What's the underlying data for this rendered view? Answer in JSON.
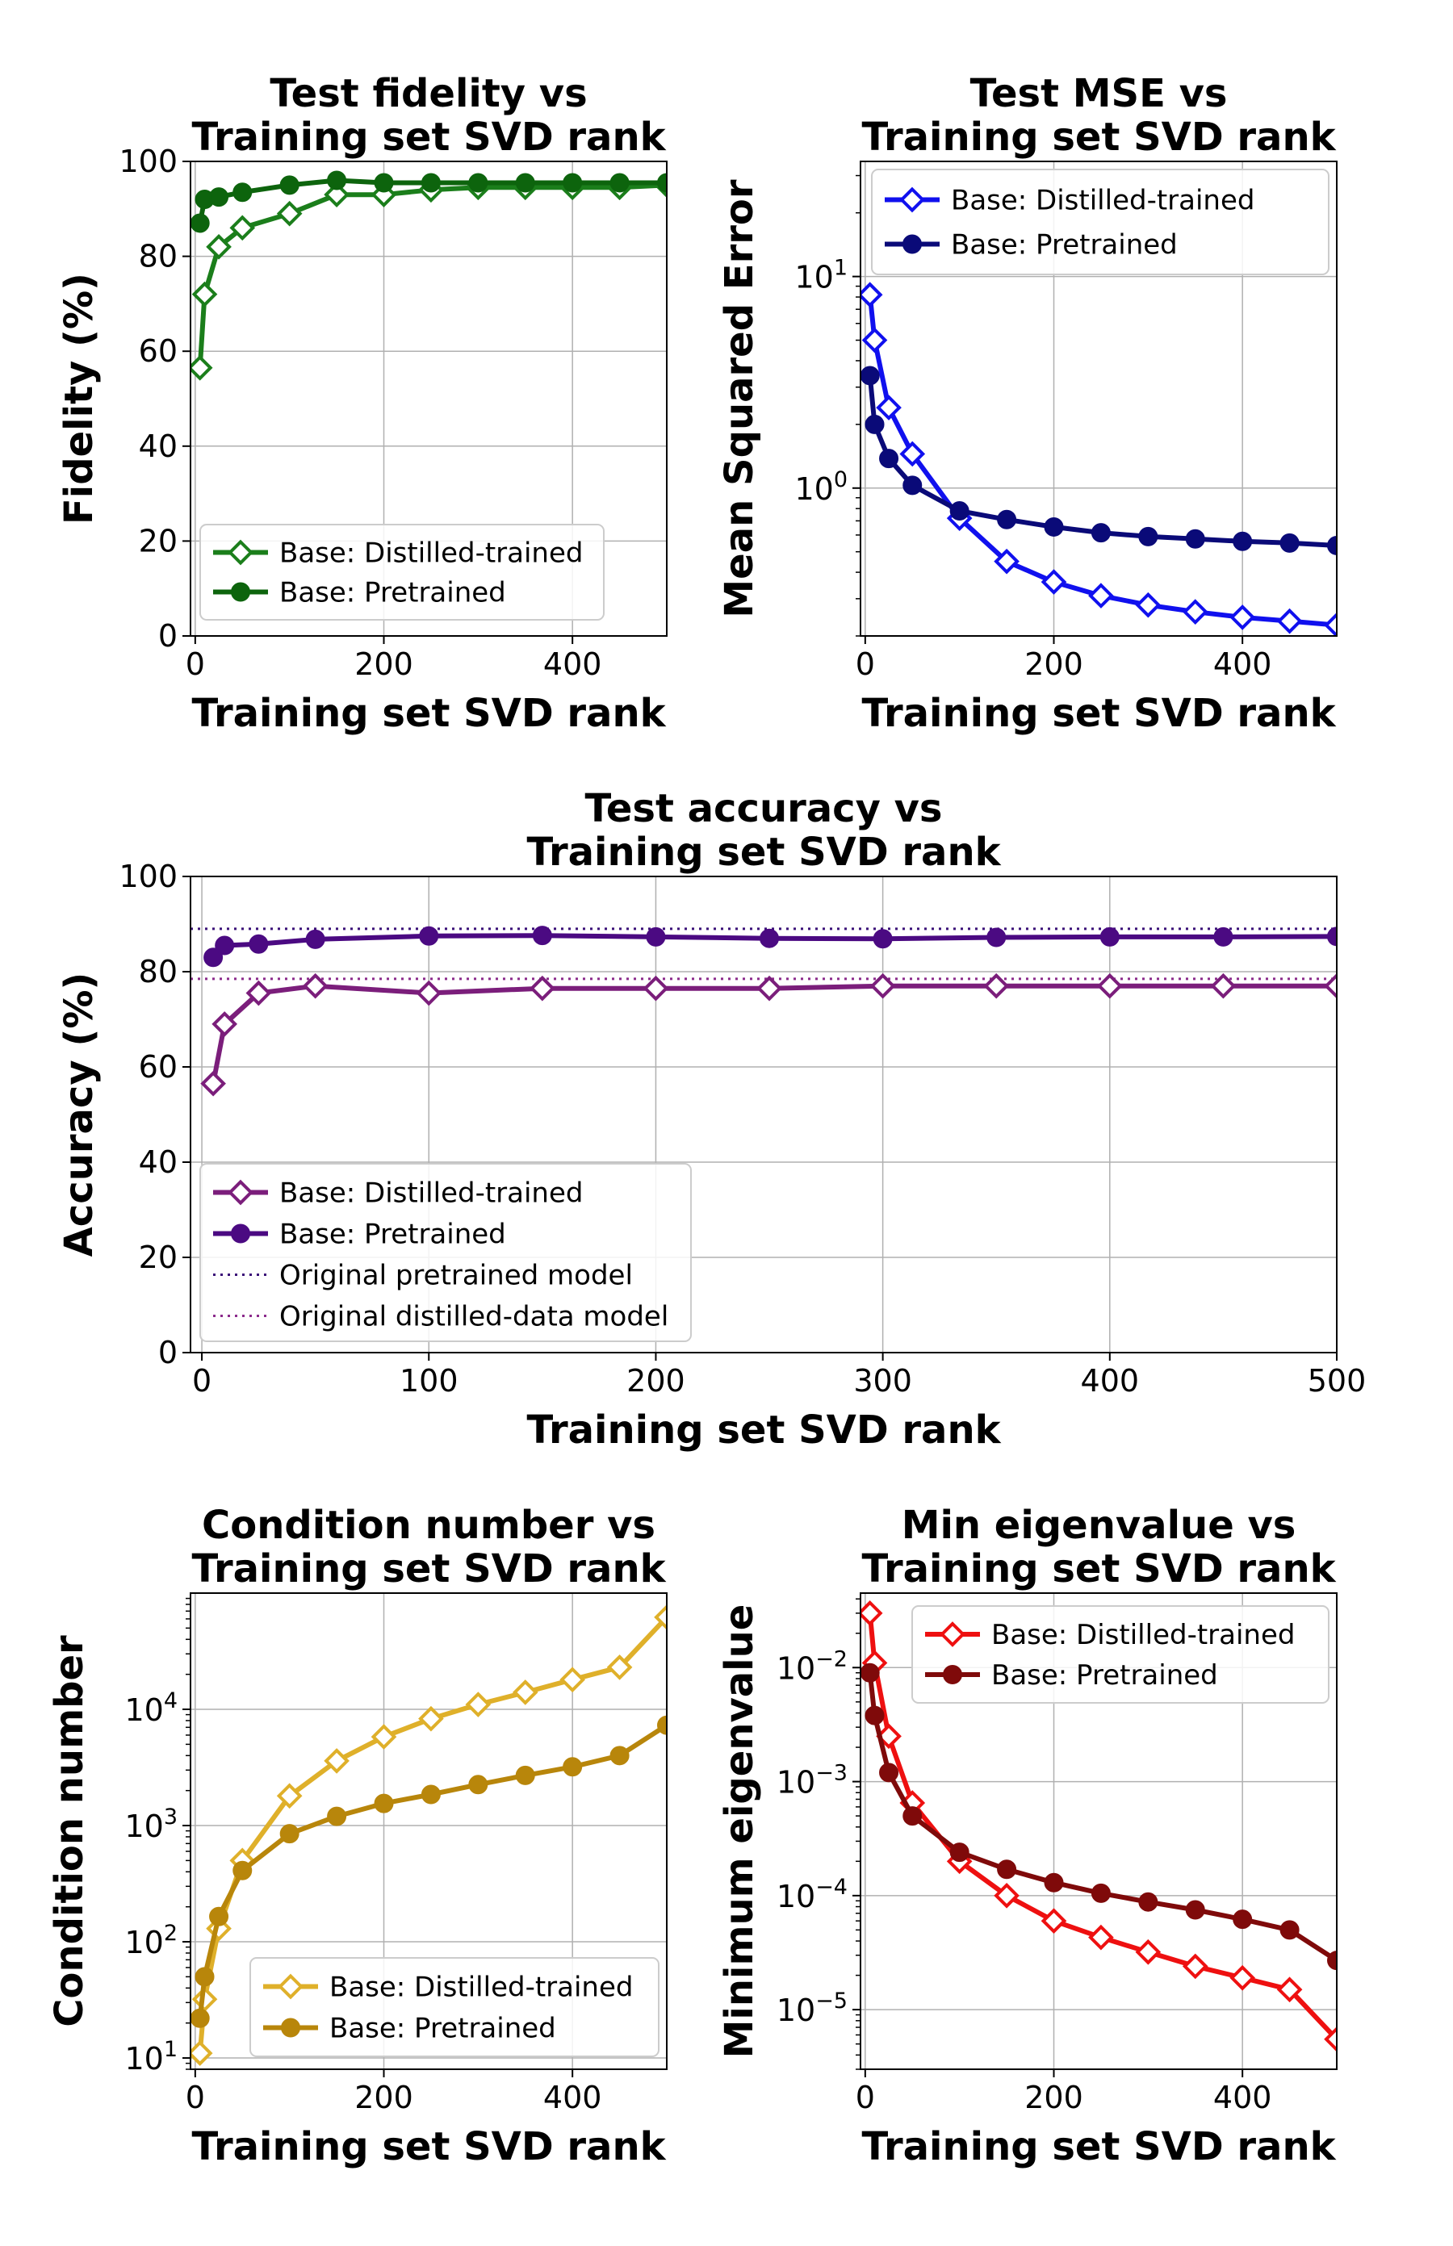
{
  "chart_data": [
    {
      "id": "fidelity",
      "type": "line",
      "title": [
        "Test fidelity vs",
        "Training set SVD rank"
      ],
      "xlabel": "Training set SVD rank",
      "ylabel": "Fidelity (%)",
      "xlim": [
        -5,
        500
      ],
      "ylim": [
        0,
        100
      ],
      "yscale": "linear",
      "xticks": [
        0,
        200,
        400
      ],
      "yticks": [
        0,
        20,
        40,
        60,
        80,
        100
      ],
      "grid": true,
      "legend_position": "lower-right",
      "series": [
        {
          "name": "Base: Distilled-trained",
          "color": "#1b7e1b",
          "marker": "diamond-open",
          "x": [
            5,
            10,
            25,
            50,
            100,
            150,
            200,
            250,
            300,
            350,
            400,
            450,
            500
          ],
          "y": [
            56.5,
            72,
            82,
            86,
            89,
            93,
            93,
            94,
            94.5,
            94.5,
            94.5,
            94.5,
            95
          ]
        },
        {
          "name": "Base: Pretrained",
          "color": "#0d640d",
          "marker": "circle",
          "x": [
            5,
            10,
            25,
            50,
            100,
            150,
            200,
            250,
            300,
            350,
            400,
            450,
            500
          ],
          "y": [
            87,
            92,
            92.5,
            93.5,
            95,
            96,
            95.5,
            95.5,
            95.5,
            95.5,
            95.5,
            95.5,
            95.5
          ]
        }
      ]
    },
    {
      "id": "mse",
      "type": "line",
      "title": [
        "Test MSE vs",
        "Training set SVD rank"
      ],
      "xlabel": "Training set SVD rank",
      "ylabel": "Mean Squared Error",
      "xlim": [
        -5,
        500
      ],
      "ylim": [
        0.2,
        35
      ],
      "yscale": "log",
      "xticks": [
        0,
        200,
        400
      ],
      "yticks": [
        {
          "base": "10",
          "exp": "0",
          "value": 1
        },
        {
          "base": "10",
          "exp": "1",
          "value": 10
        }
      ],
      "grid": true,
      "legend_position": "upper-right",
      "series": [
        {
          "name": "Base: Distilled-trained",
          "color": "#1010ee",
          "marker": "diamond-open",
          "x": [
            5,
            10,
            25,
            50,
            100,
            150,
            200,
            250,
            300,
            350,
            400,
            450,
            500
          ],
          "y": [
            8.2,
            5.0,
            2.4,
            1.45,
            0.72,
            0.45,
            0.36,
            0.31,
            0.28,
            0.26,
            0.245,
            0.235,
            0.225
          ]
        },
        {
          "name": "Base: Pretrained",
          "color": "#0a0a78",
          "marker": "circle",
          "x": [
            5,
            10,
            25,
            50,
            100,
            150,
            200,
            250,
            300,
            350,
            400,
            450,
            500
          ],
          "y": [
            3.4,
            2.0,
            1.38,
            1.03,
            0.78,
            0.71,
            0.655,
            0.615,
            0.59,
            0.575,
            0.56,
            0.55,
            0.535
          ]
        }
      ]
    },
    {
      "id": "accuracy",
      "type": "line",
      "title": [
        "Test accuracy vs",
        "Training set SVD rank"
      ],
      "xlabel": "Training set SVD rank",
      "ylabel": "Accuracy (%)",
      "xlim": [
        -5,
        500
      ],
      "ylim": [
        0,
        100
      ],
      "yscale": "linear",
      "xticks": [
        0,
        100,
        200,
        300,
        400,
        500
      ],
      "yticks": [
        0,
        20,
        40,
        60,
        80,
        100
      ],
      "grid": true,
      "legend_position": "lower-left",
      "series": [
        {
          "name": "Base: Distilled-trained",
          "color": "#7b1e7b",
          "marker": "diamond-open",
          "x": [
            5,
            10,
            25,
            50,
            100,
            150,
            200,
            250,
            300,
            350,
            400,
            450,
            500
          ],
          "y": [
            56.5,
            69,
            75.5,
            77,
            75.5,
            76.5,
            76.5,
            76.5,
            77,
            77,
            77,
            77,
            77
          ]
        },
        {
          "name": "Base: Pretrained",
          "color": "#4b0a82",
          "marker": "circle",
          "x": [
            5,
            10,
            25,
            50,
            100,
            150,
            200,
            250,
            300,
            350,
            400,
            450,
            500
          ],
          "y": [
            83,
            85.5,
            85.8,
            86.8,
            87.5,
            87.6,
            87.3,
            87,
            86.9,
            87.2,
            87.3,
            87.3,
            87.4
          ]
        }
      ],
      "reference_lines": [
        {
          "name": "Original pretrained model",
          "color": "#3a1078",
          "y": 89
        },
        {
          "name": "Original distilled-data model",
          "color": "#8b2a8b",
          "y": 78.5
        }
      ]
    },
    {
      "id": "condition",
      "type": "line",
      "title": [
        "Condition number vs",
        "Training set SVD rank"
      ],
      "xlabel": "Training set SVD rank",
      "ylabel": "Condition number",
      "xlim": [
        -5,
        500
      ],
      "ylim": [
        8,
        100000
      ],
      "yscale": "log",
      "xticks": [
        0,
        200,
        400
      ],
      "yticks": [
        {
          "base": "10",
          "exp": "1",
          "value": 10
        },
        {
          "base": "10",
          "exp": "2",
          "value": 100
        },
        {
          "base": "10",
          "exp": "3",
          "value": 1000
        },
        {
          "base": "10",
          "exp": "4",
          "value": 10000
        }
      ],
      "grid": true,
      "legend_position": "lower-right",
      "series": [
        {
          "name": "Base: Distilled-trained",
          "color": "#dfb02a",
          "marker": "diamond-open",
          "x": [
            5,
            10,
            25,
            50,
            100,
            150,
            200,
            250,
            300,
            350,
            400,
            450,
            500
          ],
          "y": [
            11,
            32,
            130,
            500,
            1800,
            3600,
            5800,
            8300,
            11000,
            14000,
            18000,
            23000,
            62000
          ]
        },
        {
          "name": "Base: Pretrained",
          "color": "#b8860b",
          "marker": "circle",
          "x": [
            5,
            10,
            25,
            50,
            100,
            150,
            200,
            250,
            300,
            350,
            400,
            450,
            500
          ],
          "y": [
            22,
            50,
            165,
            410,
            850,
            1200,
            1550,
            1850,
            2250,
            2700,
            3200,
            4000,
            7300
          ]
        }
      ]
    },
    {
      "id": "mineig",
      "type": "line",
      "title": [
        "Min eigenvalue vs",
        "Training set SVD rank"
      ],
      "xlabel": "Training set SVD rank",
      "ylabel": "Minimum eigenvalue",
      "xlim": [
        -5,
        500
      ],
      "ylim": [
        3e-06,
        0.045
      ],
      "yscale": "log",
      "xticks": [
        0,
        200,
        400
      ],
      "yticks": [
        {
          "base": "10",
          "exp": "−5",
          "value": 1e-05
        },
        {
          "base": "10",
          "exp": "−4",
          "value": 0.0001
        },
        {
          "base": "10",
          "exp": "−3",
          "value": 0.001
        },
        {
          "base": "10",
          "exp": "−2",
          "value": 0.01
        }
      ],
      "grid": true,
      "legend_position": "upper-right",
      "series": [
        {
          "name": "Base: Distilled-trained",
          "color": "#ee1010",
          "marker": "diamond-open",
          "x": [
            5,
            10,
            25,
            50,
            100,
            150,
            200,
            250,
            300,
            350,
            400,
            450,
            500
          ],
          "y": [
            0.03,
            0.011,
            0.0025,
            0.00065,
            0.0002,
            0.0001,
            6e-05,
            4.3e-05,
            3.2e-05,
            2.4e-05,
            1.9e-05,
            1.5e-05,
            5.5e-06
          ]
        },
        {
          "name": "Base: Pretrained",
          "color": "#7f0a0a",
          "marker": "circle",
          "x": [
            5,
            10,
            25,
            50,
            100,
            150,
            200,
            250,
            300,
            350,
            400,
            450,
            500
          ],
          "y": [
            0.009,
            0.0038,
            0.0012,
            0.0005,
            0.00024,
            0.00017,
            0.00013,
            0.000105,
            8.8e-05,
            7.5e-05,
            6.2e-05,
            5e-05,
            2.7e-05
          ]
        }
      ]
    }
  ]
}
